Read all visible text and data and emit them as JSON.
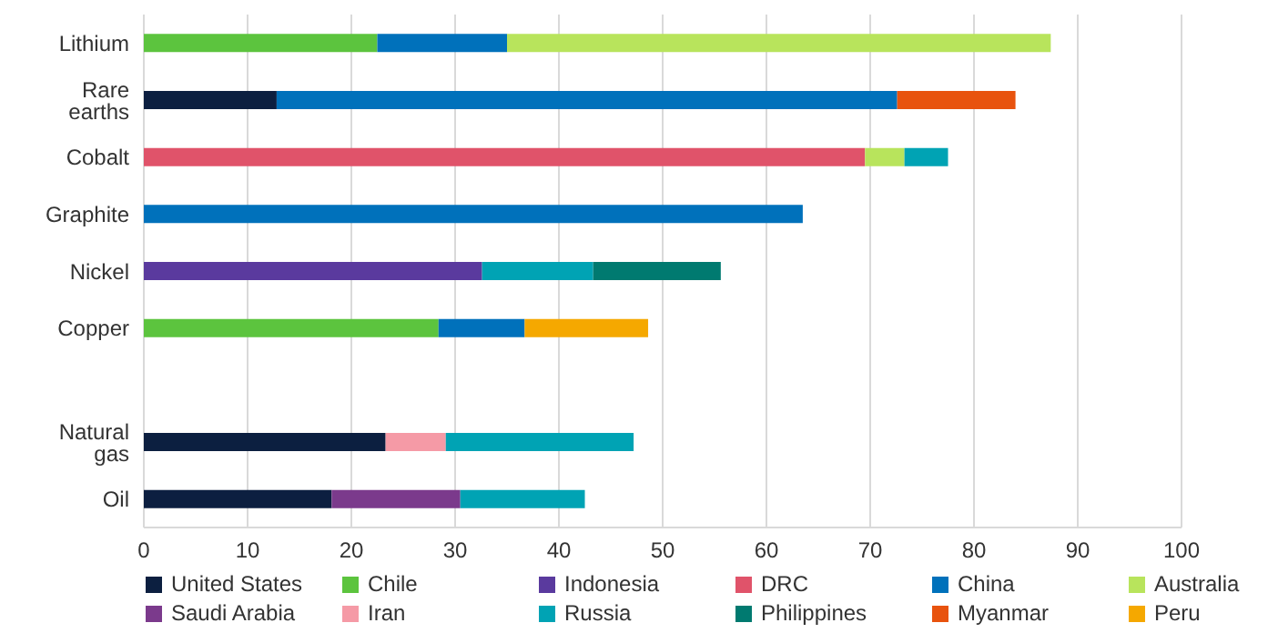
{
  "chart_data": {
    "type": "bar",
    "orientation": "horizontal",
    "stacked": true,
    "categories": [
      "Lithium",
      "Rare earths",
      "Cobalt",
      "Graphite",
      "Nickel",
      "Copper",
      null,
      "Natural gas",
      "Oil"
    ],
    "series": [
      {
        "name": "United States",
        "color": "#0c1f40",
        "values": [
          null,
          12.8,
          null,
          null,
          null,
          null,
          null,
          23.3,
          18.1
        ]
      },
      {
        "name": "Chile",
        "color": "#5cc43e",
        "values": [
          22.5,
          null,
          null,
          null,
          null,
          28.4,
          null,
          null,
          null
        ]
      },
      {
        "name": "Indonesia",
        "color": "#5a3a9e",
        "values": [
          null,
          null,
          null,
          null,
          32.6,
          null,
          null,
          null,
          null
        ]
      },
      {
        "name": "DRC",
        "color": "#e0536a",
        "values": [
          null,
          null,
          69.5,
          null,
          null,
          null,
          null,
          null,
          null
        ]
      },
      {
        "name": "China",
        "color": "#0071bb",
        "values": [
          12.5,
          59.8,
          null,
          63.5,
          null,
          8.3,
          null,
          null,
          null
        ]
      },
      {
        "name": "Australia",
        "color": "#b8e45c",
        "values": [
          52.4,
          null,
          3.8,
          null,
          null,
          null,
          null,
          null,
          null
        ]
      },
      {
        "name": "Saudi Arabia",
        "color": "#7b3a8c",
        "values": [
          null,
          null,
          null,
          null,
          null,
          null,
          null,
          null,
          12.4
        ]
      },
      {
        "name": "Iran",
        "color": "#f59aa6",
        "values": [
          null,
          null,
          null,
          null,
          null,
          null,
          null,
          5.8,
          null
        ]
      },
      {
        "name": "Russia",
        "color": "#00a3b4",
        "values": [
          null,
          null,
          4.2,
          null,
          10.7,
          null,
          null,
          18.1,
          12.0
        ]
      },
      {
        "name": "Philippines",
        "color": "#007a70",
        "values": [
          null,
          null,
          null,
          null,
          12.3,
          null,
          null,
          null,
          null
        ]
      },
      {
        "name": "Myanmar",
        "color": "#e8530e",
        "values": [
          null,
          11.4,
          null,
          null,
          null,
          null,
          null,
          null,
          null
        ]
      },
      {
        "name": "Peru",
        "color": "#f5a800",
        "values": [
          null,
          null,
          null,
          null,
          null,
          11.9,
          null,
          null,
          null
        ]
      }
    ],
    "xlim": [
      0,
      100
    ],
    "xticks": [
      0,
      10,
      20,
      30,
      40,
      50,
      60,
      70,
      80,
      90,
      100
    ],
    "grid": "x",
    "legend": "bottom"
  }
}
